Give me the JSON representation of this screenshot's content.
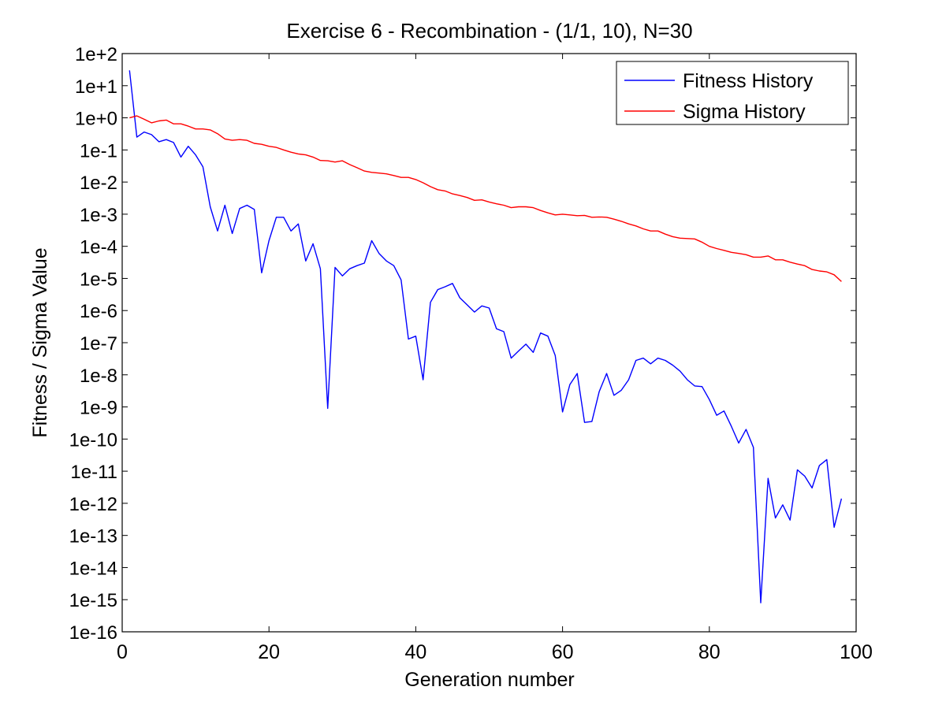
{
  "chart_data": {
    "type": "line",
    "title": "Exercise 6 - Recombination - (1/1, 10), N=30",
    "xlabel": "Generation number",
    "ylabel": "Fitness / Sigma Value",
    "xlim": [
      0,
      100
    ],
    "ylim": [
      1e-16,
      100
    ],
    "yscale": "log",
    "grid": false,
    "legend_position": "top-right",
    "x_ticks": [
      0,
      20,
      40,
      60,
      80,
      100
    ],
    "y_ticks": [
      {
        "value": 1e-16,
        "label": "1e-16"
      },
      {
        "value": 1e-15,
        "label": "1e-15"
      },
      {
        "value": 1e-14,
        "label": "1e-14"
      },
      {
        "value": 1e-13,
        "label": "1e-13"
      },
      {
        "value": 1e-12,
        "label": "1e-12"
      },
      {
        "value": 1e-11,
        "label": "1e-11"
      },
      {
        "value": 1e-10,
        "label": "1e-10"
      },
      {
        "value": 1e-09,
        "label": "1e-9"
      },
      {
        "value": 1e-08,
        "label": "1e-8"
      },
      {
        "value": 1e-07,
        "label": "1e-7"
      },
      {
        "value": 1e-06,
        "label": "1e-6"
      },
      {
        "value": 1e-05,
        "label": "1e-5"
      },
      {
        "value": 0.0001,
        "label": "1e-4"
      },
      {
        "value": 0.001,
        "label": "1e-3"
      },
      {
        "value": 0.01,
        "label": "1e-2"
      },
      {
        "value": 0.1,
        "label": "1e-1"
      },
      {
        "value": 1,
        "label": "1e+0"
      },
      {
        "value": 10,
        "label": "1e+1"
      },
      {
        "value": 100,
        "label": "1e+2"
      }
    ],
    "series": [
      {
        "name": "Fitness History",
        "color": "#0000ff",
        "x": [
          1,
          2,
          3,
          4,
          5,
          6,
          7,
          8,
          9,
          10,
          11,
          12,
          13,
          14,
          15,
          16,
          17,
          18,
          19,
          20,
          21,
          22,
          23,
          24,
          25,
          26,
          27,
          28,
          29,
          30,
          31,
          32,
          33,
          34,
          35,
          36,
          37,
          38,
          39,
          40,
          41,
          42,
          43,
          44,
          45,
          46,
          47,
          48,
          49,
          50,
          51,
          52,
          53,
          54,
          55,
          56,
          57,
          58,
          59,
          60,
          61,
          62,
          63,
          64,
          65,
          66,
          67,
          68,
          69,
          70,
          71,
          72,
          73,
          74,
          75,
          76,
          77,
          78,
          79,
          80,
          81,
          82,
          83,
          84,
          85,
          86,
          87,
          88,
          89,
          90,
          91,
          92,
          93,
          94,
          95,
          96,
          97,
          98
        ],
        "y": [
          30,
          0.25,
          0.36,
          0.3,
          0.18,
          0.21,
          0.17,
          0.06,
          0.13,
          0.07,
          0.03,
          0.0017,
          0.0003,
          0.0019,
          0.00025,
          0.0015,
          0.0019,
          0.0014,
          1.5e-05,
          0.00015,
          0.0008,
          0.0008,
          0.0003,
          0.0005,
          3.5e-05,
          0.00012,
          2e-05,
          9e-10,
          2.2e-05,
          1.2e-05,
          2e-05,
          2.5e-05,
          3e-05,
          0.00015,
          6e-05,
          3.5e-05,
          2.5e-05,
          9e-06,
          1.3e-07,
          1.6e-07,
          7e-09,
          1.8e-06,
          4.5e-06,
          5.5e-06,
          7e-06,
          2.5e-06,
          1.5e-06,
          9e-07,
          1.4e-06,
          1.2e-06,
          2.7e-07,
          2.2e-07,
          3.3e-08,
          5.5e-08,
          9e-08,
          5e-08,
          2e-07,
          1.6e-07,
          4e-08,
          7e-10,
          5e-09,
          1.1e-08,
          3.3e-10,
          3.5e-10,
          3e-09,
          1.1e-08,
          2.3e-09,
          3.3e-09,
          7e-09,
          2.8e-08,
          3.3e-08,
          2.2e-08,
          3.3e-08,
          2.8e-08,
          2e-08,
          1.3e-08,
          7e-09,
          4.5e-09,
          4.3e-09,
          1.7e-09,
          5.5e-10,
          7.5e-10,
          2.5e-10,
          7.5e-11,
          2e-10,
          5.5e-11,
          8e-16,
          6e-12,
          3.5e-13,
          9e-13,
          3e-13,
          1.1e-11,
          7e-12,
          3e-12,
          1.5e-11,
          2.3e-11,
          1.8e-13,
          1.4e-12
        ]
      },
      {
        "name": "Sigma History",
        "color": "#ff0000",
        "x": [
          1,
          2,
          3,
          4,
          5,
          6,
          7,
          8,
          9,
          10,
          11,
          12,
          13,
          14,
          15,
          16,
          17,
          18,
          19,
          20,
          21,
          22,
          23,
          24,
          25,
          26,
          27,
          28,
          29,
          30,
          31,
          32,
          33,
          34,
          35,
          36,
          37,
          38,
          39,
          40,
          41,
          42,
          43,
          44,
          45,
          46,
          47,
          48,
          49,
          50,
          51,
          52,
          53,
          54,
          55,
          56,
          57,
          58,
          59,
          60,
          61,
          62,
          63,
          64,
          65,
          66,
          67,
          68,
          69,
          70,
          71,
          72,
          73,
          74,
          75,
          76,
          77,
          78,
          79,
          80,
          81,
          82,
          83,
          84,
          85,
          86,
          87,
          88,
          89,
          90,
          91,
          92,
          93,
          94,
          95,
          96,
          97,
          98
        ],
        "y": [
          1.0,
          1.15,
          0.9,
          0.7,
          0.8,
          0.85,
          0.65,
          0.65,
          0.55,
          0.45,
          0.45,
          0.42,
          0.32,
          0.22,
          0.2,
          0.21,
          0.2,
          0.16,
          0.15,
          0.13,
          0.12,
          0.1,
          0.085,
          0.075,
          0.07,
          0.06,
          0.047,
          0.046,
          0.042,
          0.046,
          0.035,
          0.028,
          0.022,
          0.02,
          0.019,
          0.018,
          0.016,
          0.014,
          0.014,
          0.012,
          0.0095,
          0.0072,
          0.0058,
          0.0053,
          0.0043,
          0.0038,
          0.0033,
          0.0027,
          0.0028,
          0.0024,
          0.0021,
          0.0019,
          0.0016,
          0.0017,
          0.0017,
          0.0016,
          0.0013,
          0.0011,
          0.00095,
          0.001,
          0.00095,
          0.0009,
          0.00092,
          0.0008,
          0.00082,
          0.0008,
          0.0007,
          0.0006,
          0.0005,
          0.00043,
          0.00035,
          0.0003,
          0.0003,
          0.00024,
          0.0002,
          0.00018,
          0.000175,
          0.00017,
          0.000135,
          0.0001,
          8.5e-05,
          7.5e-05,
          6.5e-05,
          6e-05,
          5.5e-05,
          4.6e-05,
          4.6e-05,
          5e-05,
          3.8e-05,
          3.8e-05,
          3.2e-05,
          2.8e-05,
          2.5e-05,
          1.9e-05,
          1.7e-05,
          1.6e-05,
          1.3e-05,
          8e-06
        ]
      }
    ]
  }
}
